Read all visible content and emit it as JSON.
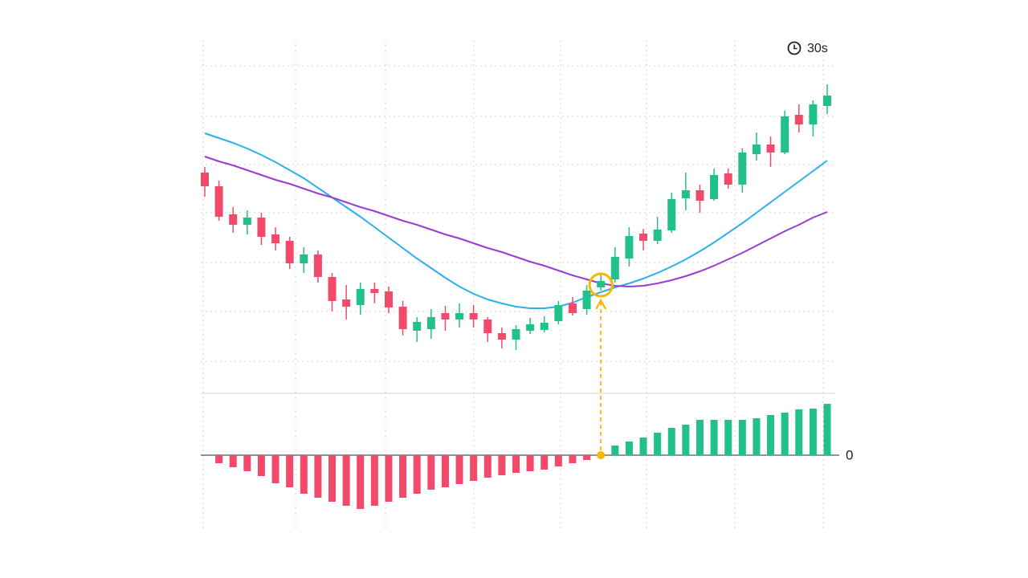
{
  "timeframe": "30s",
  "chart_data": [
    {
      "type": "candlestick",
      "categories": [
        null,
        null,
        null,
        null,
        null,
        null,
        null,
        null,
        null,
        null,
        null,
        null,
        null,
        null,
        null,
        null,
        null,
        null,
        null,
        null,
        null,
        null,
        null,
        null,
        null,
        null,
        null,
        null,
        null,
        null,
        null,
        null,
        null,
        null,
        null,
        null,
        null,
        null,
        null,
        null,
        null,
        null,
        null,
        null,
        null
      ],
      "open": [
        485,
        468,
        433,
        420,
        429,
        408,
        400,
        372,
        383,
        355,
        327,
        320,
        340,
        337,
        318,
        288,
        290,
        310,
        302,
        310,
        302,
        285,
        277,
        288,
        289,
        300,
        322,
        315,
        342,
        352,
        378,
        409,
        400,
        413,
        453,
        463,
        452,
        484,
        470,
        508,
        520,
        510,
        557,
        545,
        568
      ],
      "high": [
        492,
        475,
        442,
        438,
        435,
        417,
        405,
        392,
        388,
        360,
        345,
        348,
        348,
        343,
        325,
        305,
        315,
        319,
        322,
        320,
        305,
        292,
        295,
        304,
        306,
        325,
        330,
        345,
        358,
        392,
        417,
        415,
        430,
        460,
        485,
        470,
        490,
        490,
        515,
        535,
        530,
        562,
        570,
        575,
        595
      ],
      "low": [
        455,
        425,
        410,
        408,
        395,
        388,
        365,
        360,
        348,
        312,
        302,
        308,
        322,
        310,
        282,
        274,
        278,
        288,
        292,
        292,
        274,
        266,
        264,
        284,
        286,
        296,
        307,
        308,
        338,
        348,
        368,
        388,
        396,
        410,
        438,
        435,
        450,
        465,
        460,
        500,
        492,
        508,
        535,
        530,
        558
      ],
      "close": [
        468,
        430,
        420,
        429,
        405,
        397,
        372,
        383,
        355,
        325,
        318,
        340,
        335,
        317,
        290,
        299,
        305,
        302,
        310,
        302,
        285,
        277,
        290,
        296,
        298,
        320,
        310,
        338,
        350,
        380,
        406,
        400,
        414,
        452,
        463,
        450,
        482,
        470,
        510,
        520,
        510,
        555,
        545,
        570,
        581
      ],
      "up_color": "#22c08a",
      "down_color": "#f24a6b",
      "lines": [
        {
          "color": "#2bb0ec",
          "values": [
            534,
            528,
            522,
            515,
            507,
            498,
            488,
            478,
            466,
            454,
            442,
            430,
            417,
            404,
            391,
            378,
            366,
            354,
            343,
            334,
            327,
            322,
            318,
            316,
            316,
            318,
            323,
            330,
            336,
            342,
            347,
            353,
            360,
            368,
            377,
            387,
            398,
            410,
            422,
            435,
            448,
            461,
            474,
            487,
            500
          ]
        },
        {
          "color": "#9a3ccf",
          "values": [
            505,
            499,
            494,
            488,
            482,
            476,
            471,
            465,
            459,
            454,
            448,
            442,
            437,
            431,
            425,
            420,
            414,
            408,
            403,
            397,
            391,
            386,
            380,
            374,
            369,
            363,
            357,
            352,
            347,
            344,
            343,
            344,
            347,
            351,
            356,
            362,
            369,
            377,
            385,
            394,
            403,
            412,
            420,
            429,
            436
          ]
        }
      ],
      "highlight": 28,
      "highlight_color": "#f5b800",
      "ylim": [
        210,
        650
      ],
      "yticks": [
        618,
        555,
        495,
        435,
        373,
        312,
        250
      ],
      "grid": true
    },
    {
      "type": "bar",
      "values": [
        null,
        -10,
        -15,
        -20,
        -26,
        -35,
        -40,
        -48,
        -53,
        -58,
        -63,
        -67,
        -63,
        -58,
        -53,
        -48,
        -43,
        -40,
        -36,
        -32,
        -28,
        -25,
        -22,
        -20,
        -18,
        -14,
        -10,
        -6,
        0,
        12,
        17,
        22,
        28,
        34,
        38,
        44,
        44,
        44,
        44,
        46,
        50,
        53,
        57,
        58,
        64
      ],
      "up_color": "#22c08a",
      "down_color": "#f24a6b",
      "ylim": [
        -93,
        77
      ],
      "yticks": [
        0
      ]
    }
  ]
}
